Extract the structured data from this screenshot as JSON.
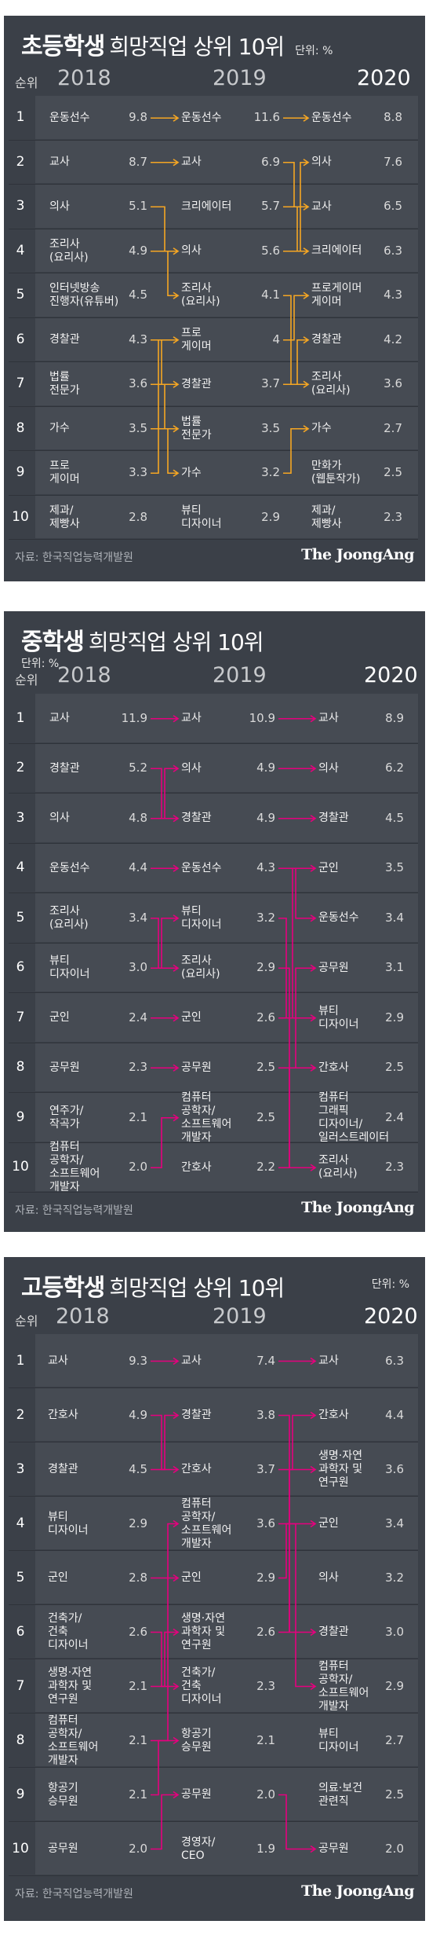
{
  "chart_data": [
    {
      "type": "table",
      "title_level": "초등학생",
      "title_rest": "희망직업 상위 10위",
      "unit": "단위: %",
      "rank_header": "순위",
      "years": [
        "2018",
        "2019",
        "2020"
      ],
      "ranks": [
        "1",
        "2",
        "3",
        "4",
        "5",
        "6",
        "7",
        "8",
        "9",
        "10"
      ],
      "columns": [
        [
          {
            "name": "운동선수",
            "value": "9.8"
          },
          {
            "name": "교사",
            "value": "8.7"
          },
          {
            "name": "의사",
            "value": "5.1"
          },
          {
            "name": "조리사\n(요리사)",
            "value": "4.9"
          },
          {
            "name": "인터넷방송\n진행자(유튜버)",
            "value": "4.5"
          },
          {
            "name": "경찰관",
            "value": "4.3"
          },
          {
            "name": "법률\n전문가",
            "value": "3.6"
          },
          {
            "name": "가수",
            "value": "3.5"
          },
          {
            "name": "프로\n게이머",
            "value": "3.3"
          },
          {
            "name": "제과/\n제빵사",
            "value": "2.8"
          }
        ],
        [
          {
            "name": "운동선수",
            "value": "11.6"
          },
          {
            "name": "교사",
            "value": "6.9"
          },
          {
            "name": "크리에이터",
            "value": "5.7"
          },
          {
            "name": "의사",
            "value": "5.6"
          },
          {
            "name": "조리사\n(요리사)",
            "value": "4.1"
          },
          {
            "name": "프로\n게이머",
            "value": "4"
          },
          {
            "name": "경찰관",
            "value": "3.7"
          },
          {
            "name": "법률\n전문가",
            "value": "3.5"
          },
          {
            "name": "가수",
            "value": "3.2"
          },
          {
            "name": "뷰티\n디자이너",
            "value": "2.9"
          }
        ],
        [
          {
            "name": "운동선수",
            "value": "8.8"
          },
          {
            "name": "의사",
            "value": "7.6"
          },
          {
            "name": "교사",
            "value": "6.5"
          },
          {
            "name": "크리에이터",
            "value": "6.3"
          },
          {
            "name": "프로게이머\n게이머",
            "value": "4.3"
          },
          {
            "name": "경찰관",
            "value": "4.2"
          },
          {
            "name": "조리사\n(요리사)",
            "value": "3.6"
          },
          {
            "name": "가수",
            "value": "2.7"
          },
          {
            "name": "만화가\n(웹툰작가)",
            "value": "2.5"
          },
          {
            "name": "제과/\n제빵사",
            "value": "2.3"
          }
        ]
      ],
      "links_a": [
        [
          0,
          0
        ],
        [
          1,
          1
        ],
        [
          2,
          3
        ],
        [
          3,
          4
        ],
        [
          4,
          -1
        ],
        [
          5,
          6
        ],
        [
          6,
          7
        ],
        [
          7,
          8
        ],
        [
          8,
          5
        ],
        [
          9,
          -1
        ]
      ],
      "links_b": [
        [
          0,
          0
        ],
        [
          1,
          2
        ],
        [
          2,
          3
        ],
        [
          3,
          1
        ],
        [
          4,
          6
        ],
        [
          5,
          4
        ],
        [
          6,
          5
        ],
        [
          7,
          -1
        ],
        [
          8,
          7
        ],
        [
          9,
          -1
        ]
      ],
      "source": "자료: 한국직업능력개발원",
      "brand": "The JoongAng"
    },
    {
      "type": "table",
      "title_level": "중학생",
      "title_rest": "희망직업 상위 10위",
      "unit": "단위: %",
      "rank_header": "순위",
      "years": [
        "2018",
        "2019",
        "2020"
      ],
      "ranks": [
        "1",
        "2",
        "3",
        "4",
        "5",
        "6",
        "7",
        "8",
        "9",
        "10"
      ],
      "columns": [
        [
          {
            "name": "교사",
            "value": "11.9"
          },
          {
            "name": "경찰관",
            "value": "5.2"
          },
          {
            "name": "의사",
            "value": "4.8"
          },
          {
            "name": "운동선수",
            "value": "4.4"
          },
          {
            "name": "조리사\n(요리사)",
            "value": "3.4"
          },
          {
            "name": "뷰티\n디자이너",
            "value": "3.0"
          },
          {
            "name": "군인",
            "value": "2.4"
          },
          {
            "name": "공무원",
            "value": "2.3"
          },
          {
            "name": "연주가/\n작곡가",
            "value": "2.1"
          },
          {
            "name": "컴퓨터\n공학자/\n소프트웨어\n개발자",
            "value": "2.0"
          }
        ],
        [
          {
            "name": "교사",
            "value": "10.9"
          },
          {
            "name": "의사",
            "value": "4.9"
          },
          {
            "name": "경찰관",
            "value": "4.9"
          },
          {
            "name": "운동선수",
            "value": "4.3"
          },
          {
            "name": "뷰티\n디자이너",
            "value": "3.2"
          },
          {
            "name": "조리사\n(요리사)",
            "value": "2.9"
          },
          {
            "name": "군인",
            "value": "2.6"
          },
          {
            "name": "공무원",
            "value": "2.5"
          },
          {
            "name": "컴퓨터\n공학자/\n소프트웨어\n개발자",
            "value": "2.5"
          },
          {
            "name": "간호사",
            "value": "2.2"
          }
        ],
        [
          {
            "name": "교사",
            "value": "8.9"
          },
          {
            "name": "의사",
            "value": "6.2"
          },
          {
            "name": "경찰관",
            "value": "4.5"
          },
          {
            "name": "군인",
            "value": "3.5"
          },
          {
            "name": "운동선수",
            "value": "3.4"
          },
          {
            "name": "공무원",
            "value": "3.1"
          },
          {
            "name": "뷰티\n디자이너",
            "value": "2.9"
          },
          {
            "name": "간호사",
            "value": "2.5"
          },
          {
            "name": "컴퓨터\n그래픽\n디자이너/\n일러스트레이터",
            "value": "2.4"
          },
          {
            "name": "조리사\n(요리사)",
            "value": "2.3"
          }
        ]
      ],
      "links_a": [
        [
          0,
          0
        ],
        [
          1,
          2
        ],
        [
          2,
          1
        ],
        [
          3,
          3
        ],
        [
          4,
          5
        ],
        [
          5,
          4
        ],
        [
          6,
          6
        ],
        [
          7,
          7
        ],
        [
          8,
          -1
        ],
        [
          9,
          8
        ]
      ],
      "links_b": [
        [
          0,
          0
        ],
        [
          1,
          1
        ],
        [
          2,
          2
        ],
        [
          3,
          4
        ],
        [
          4,
          6
        ],
        [
          5,
          9
        ],
        [
          6,
          3
        ],
        [
          7,
          5
        ],
        [
          8,
          -1
        ],
        [
          9,
          7
        ]
      ],
      "source": "자료: 한국직업능력개발원",
      "brand": "The JoongAng"
    },
    {
      "type": "table",
      "title_level": "고등학생",
      "title_rest": "희망직업 상위 10위",
      "unit": "단위: %",
      "rank_header": "순위",
      "years": [
        "2018",
        "2019",
        "2020"
      ],
      "ranks": [
        "1",
        "2",
        "3",
        "4",
        "5",
        "6",
        "7",
        "8",
        "9",
        "10"
      ],
      "columns": [
        [
          {
            "name": "교사",
            "value": "9.3"
          },
          {
            "name": "간호사",
            "value": "4.9"
          },
          {
            "name": "경찰관",
            "value": "4.5"
          },
          {
            "name": "뷰티\n디자이너",
            "value": "2.9"
          },
          {
            "name": "군인",
            "value": "2.8"
          },
          {
            "name": "건축가/\n건축\n디자이너",
            "value": "2.6"
          },
          {
            "name": "생명·자연\n과학자 및\n연구원",
            "value": "2.1"
          },
          {
            "name": "컴퓨터\n공학자/\n소프트웨어\n개발자",
            "value": "2.1"
          },
          {
            "name": "항공기\n승무원",
            "value": "2.1"
          },
          {
            "name": "공무원",
            "value": "2.0"
          }
        ],
        [
          {
            "name": "교사",
            "value": "7.4"
          },
          {
            "name": "경찰관",
            "value": "3.8"
          },
          {
            "name": "간호사",
            "value": "3.7"
          },
          {
            "name": "컴퓨터\n공학자/\n소프트웨어\n개발자",
            "value": "3.6"
          },
          {
            "name": "군인",
            "value": "2.9"
          },
          {
            "name": "생명·자연\n과학자 및\n연구원",
            "value": "2.6"
          },
          {
            "name": "건축가/\n건축\n디자이너",
            "value": "2.3"
          },
          {
            "name": "항공기\n승무원",
            "value": "2.1"
          },
          {
            "name": "공무원",
            "value": "2.0"
          },
          {
            "name": "경영자/\nCEO",
            "value": "1.9"
          }
        ],
        [
          {
            "name": "교사",
            "value": "6.3"
          },
          {
            "name": "간호사",
            "value": "4.4"
          },
          {
            "name": "생명·자연\n과학자 및\n연구원",
            "value": "3.6"
          },
          {
            "name": "군인",
            "value": "3.4"
          },
          {
            "name": "의사",
            "value": "3.2"
          },
          {
            "name": "경찰관",
            "value": "3.0"
          },
          {
            "name": "컴퓨터\n공학자/\n소프트웨어\n개발자",
            "value": "2.9"
          },
          {
            "name": "뷰티\n디자이너",
            "value": "2.7"
          },
          {
            "name": "의료·보건\n관련직",
            "value": "2.5"
          },
          {
            "name": "공무원",
            "value": "2.0"
          }
        ]
      ],
      "links_a": [
        [
          0,
          0
        ],
        [
          1,
          2
        ],
        [
          2,
          1
        ],
        [
          3,
          -1
        ],
        [
          4,
          4
        ],
        [
          5,
          6
        ],
        [
          6,
          5
        ],
        [
          7,
          3
        ],
        [
          8,
          7
        ],
        [
          9,
          8
        ]
      ],
      "links_b": [
        [
          0,
          0
        ],
        [
          1,
          5
        ],
        [
          2,
          1
        ],
        [
          3,
          6
        ],
        [
          4,
          3
        ],
        [
          5,
          2
        ],
        [
          6,
          -1
        ],
        [
          7,
          -1
        ],
        [
          8,
          9
        ],
        [
          9,
          -1
        ]
      ],
      "source": "자료: 한국직업능력개발원",
      "brand": "The JoongAng"
    }
  ],
  "colors": {
    "panel": "#3b4048",
    "row": "#464b53",
    "link": "#e6007e",
    "link_alt": "#f5a623"
  }
}
